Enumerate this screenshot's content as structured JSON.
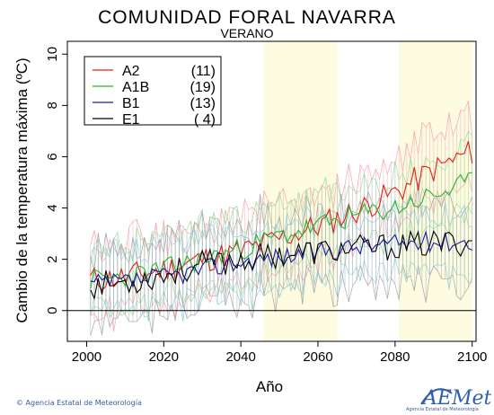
{
  "chart_data": {
    "type": "line",
    "title": "COMUNIDAD FORAL NAVARRA",
    "subtitle": "VERANO",
    "xlabel": "Año",
    "ylabel": "Cambio de la temperatura máxima (ºC)",
    "xlim": [
      1995,
      2101
    ],
    "ylim": [
      -1.2,
      10.5
    ],
    "xticks": [
      2000,
      2020,
      2040,
      2060,
      2080,
      2100
    ],
    "yticks": [
      0,
      2,
      4,
      6,
      8,
      10
    ],
    "highlight_periods": [
      [
        2046,
        2065
      ],
      [
        2081,
        2100
      ]
    ],
    "legend_position": "top-left",
    "series": [
      {
        "name": "A2",
        "count": "(11)",
        "color": "#e3201b",
        "band_color": "#f6a6b2",
        "anchors": [
          [
            2001,
            1.2
          ],
          [
            2010,
            1.3
          ],
          [
            2020,
            1.6
          ],
          [
            2030,
            2.0
          ],
          [
            2040,
            2.3
          ],
          [
            2050,
            2.8
          ],
          [
            2060,
            3.3
          ],
          [
            2070,
            3.9
          ],
          [
            2080,
            4.6
          ],
          [
            2090,
            5.5
          ],
          [
            2100,
            6.2
          ]
        ],
        "amp": 0.55,
        "spread": 1.4,
        "seed": 11
      },
      {
        "name": "A1B",
        "count": "(19)",
        "color": "#2bb52b",
        "band_color": "#9fdc9f",
        "anchors": [
          [
            2001,
            1.2
          ],
          [
            2010,
            1.3
          ],
          [
            2020,
            1.6
          ],
          [
            2030,
            2.0
          ],
          [
            2040,
            2.4
          ],
          [
            2050,
            2.9
          ],
          [
            2060,
            3.3
          ],
          [
            2070,
            3.7
          ],
          [
            2080,
            4.0
          ],
          [
            2090,
            4.5
          ],
          [
            2100,
            5.0
          ]
        ],
        "amp": 0.45,
        "spread": 1.3,
        "seed": 23
      },
      {
        "name": "B1",
        "count": "(13)",
        "color": "#1a1aa6",
        "band_color": "#8fd0e0",
        "anchors": [
          [
            2001,
            1.0
          ],
          [
            2010,
            1.1
          ],
          [
            2020,
            1.3
          ],
          [
            2030,
            1.6
          ],
          [
            2040,
            1.9
          ],
          [
            2050,
            2.1
          ],
          [
            2060,
            2.3
          ],
          [
            2070,
            2.5
          ],
          [
            2080,
            2.6
          ],
          [
            2090,
            2.7
          ],
          [
            2100,
            2.7
          ]
        ],
        "amp": 0.4,
        "spread": 1.2,
        "seed": 37
      },
      {
        "name": "E1",
        "count": "( 4)",
        "color": "#000000",
        "band_color": "#a8a8a8",
        "anchors": [
          [
            2001,
            1.0
          ],
          [
            2010,
            1.1
          ],
          [
            2020,
            1.4
          ],
          [
            2030,
            1.8
          ],
          [
            2040,
            2.0
          ],
          [
            2050,
            2.2
          ],
          [
            2060,
            2.3
          ],
          [
            2070,
            2.4
          ],
          [
            2080,
            2.5
          ],
          [
            2090,
            2.6
          ],
          [
            2100,
            2.7
          ]
        ],
        "amp": 0.55,
        "spread": 1.5,
        "seed": 53
      }
    ]
  },
  "footer": {
    "credit": "© Agencia Estatal de Meteorología",
    "logo_text": "AEMet",
    "logo_sub": "Agencia Estatal de Meteorología"
  }
}
